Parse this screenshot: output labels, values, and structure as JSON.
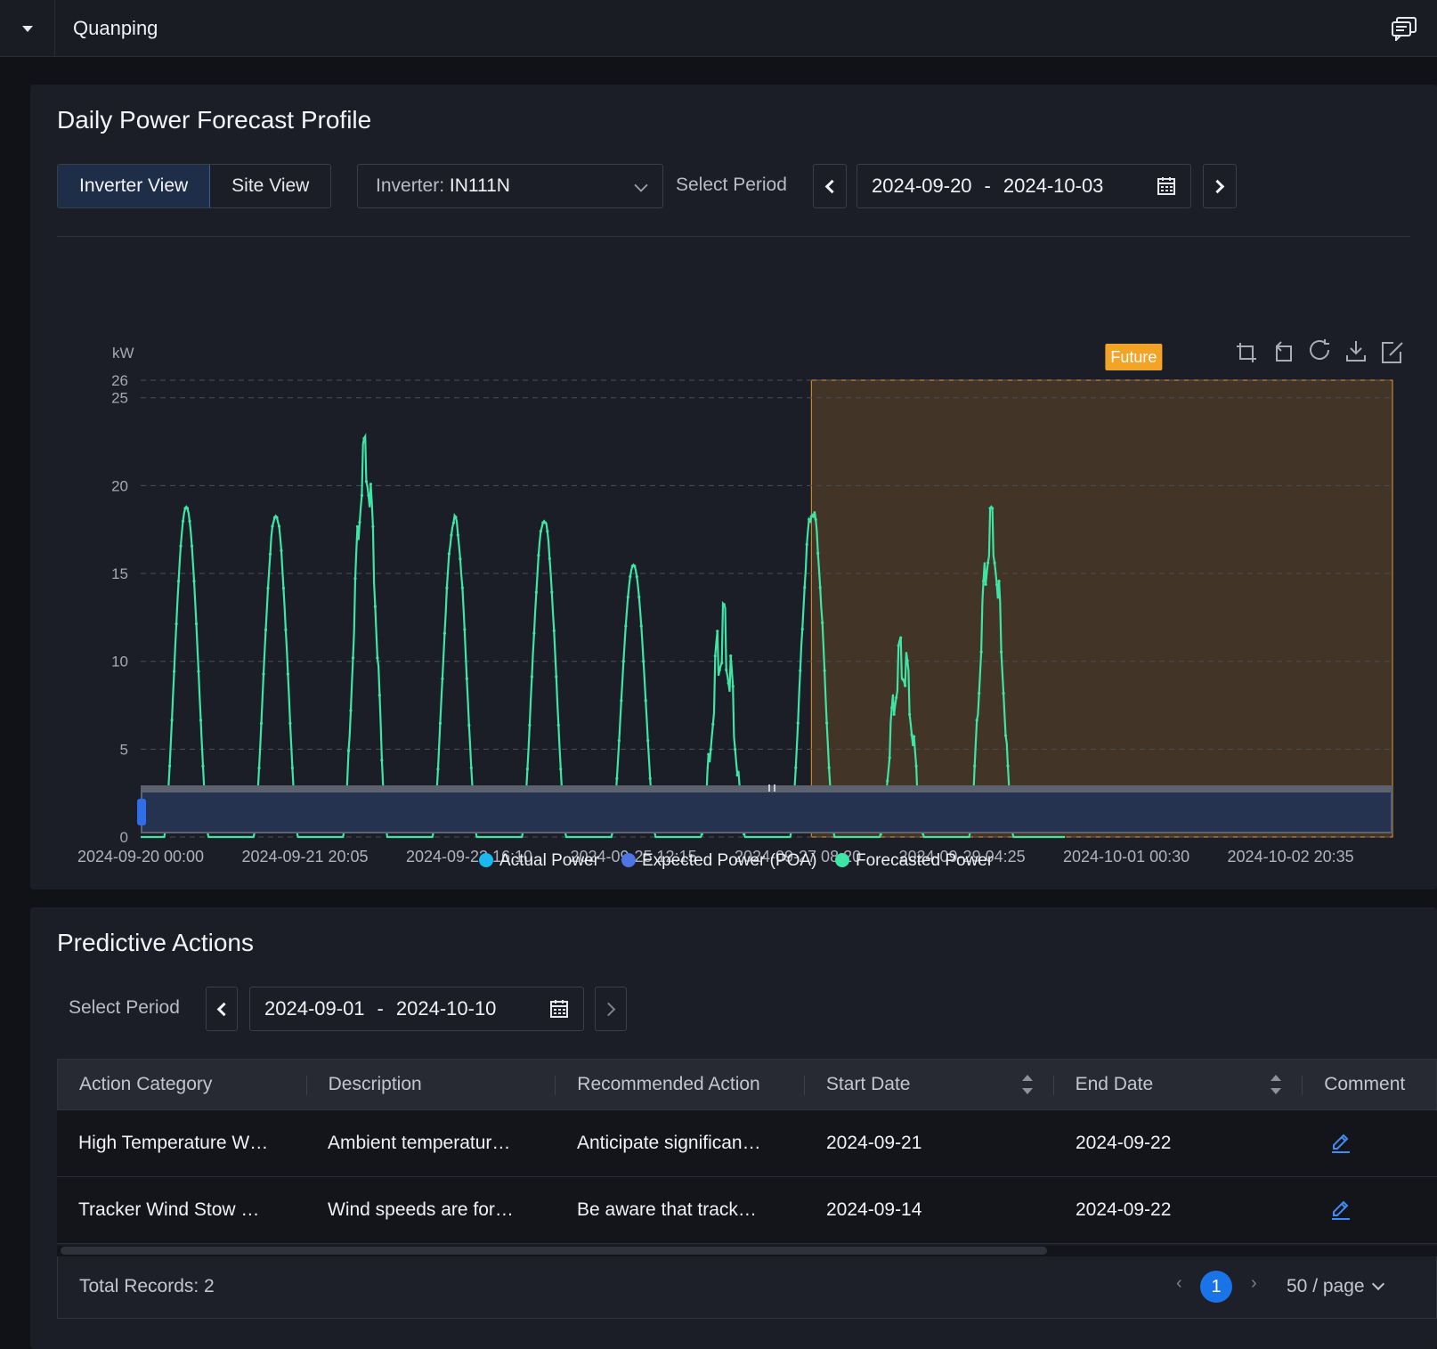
{
  "topbar": {
    "site_name": "Quanping"
  },
  "forecast": {
    "title": "Daily Power Forecast Profile",
    "views": [
      {
        "label": "Inverter View",
        "active": true
      },
      {
        "label": "Site View",
        "active": false
      }
    ],
    "inverter_label": "Inverter:",
    "inverter_value": "IN111N",
    "period_label": "Select Period",
    "period_start": "2024-09-20",
    "period_sep": "-",
    "period_end": "2024-10-03"
  },
  "chart_data": {
    "type": "line",
    "ylabel": "kW",
    "ylim": [
      0,
      26
    ],
    "yticks": [
      0,
      5,
      10,
      15,
      20,
      25,
      26
    ],
    "grid": true,
    "x_tick_labels": [
      "2024-09-20 00:00",
      "2024-09-21 20:05",
      "2024-09-23 16:10",
      "2024-09-25 12:15",
      "2024-09-27 08:20",
      "2024-09-29 04:25",
      "2024-10-01 00:30",
      "2024-10-02 20:35"
    ],
    "xlim": [
      "2024-09-20 00:00",
      "2024-10-03 23:55"
    ],
    "future_marker": {
      "label": "Future",
      "from": "2024-09-27 12:00"
    },
    "legend": [
      "Actual Power",
      "Expected Power (POA)",
      "Forecasted Power"
    ],
    "legend_position": "bottom",
    "series": [
      {
        "name": "Actual Power",
        "color": "#1bb8f0",
        "points": []
      },
      {
        "name": "Expected Power (POA)",
        "color": "#4e74e6",
        "points": []
      },
      {
        "name": "Forecasted Power",
        "color": "#3ee5a4",
        "daily_peaks": [
          {
            "day": "2024-09-20",
            "peak": 18.8
          },
          {
            "day": "2024-09-21",
            "peak": 18.5
          },
          {
            "day": "2024-09-22",
            "peak": 22.8
          },
          {
            "day": "2024-09-23",
            "peak": 18.3
          },
          {
            "day": "2024-09-24",
            "peak": 18.2
          },
          {
            "day": "2024-09-25",
            "peak": 15.5
          },
          {
            "day": "2024-09-26",
            "peak": 13.3
          },
          {
            "day": "2024-09-27",
            "peak": 18.9
          },
          {
            "day": "2024-09-28",
            "peak": 11.4
          },
          {
            "day": "2024-09-29",
            "peak": 18.8
          },
          {
            "day": "2024-09-30",
            "peak": 0
          },
          {
            "day": "2024-10-01",
            "peak": 0
          },
          {
            "day": "2024-10-02",
            "peak": 0
          },
          {
            "day": "2024-10-03",
            "peak": 0
          }
        ]
      }
    ],
    "zoom_slider_range": [
      0,
      1
    ]
  },
  "actions": {
    "title": "Predictive Actions",
    "period_label": "Select Period",
    "period_start": "2024-09-01",
    "period_sep": "-",
    "period_end": "2024-10-10",
    "columns": [
      "Action Category",
      "Description",
      "Recommended Action",
      "Start Date",
      "End Date",
      "Comment"
    ],
    "rows": [
      {
        "category": "High Temperature W…",
        "description": "Ambient temperatur…",
        "recommended": "Anticipate significan…",
        "start": "2024-09-21",
        "end": "2024-09-22"
      },
      {
        "category": "Tracker Wind Stow …",
        "description": "Wind speeds are for…",
        "recommended": "Be aware that track…",
        "start": "2024-09-14",
        "end": "2024-09-22"
      }
    ],
    "total_records": "Total Records: 2",
    "current_page": "1",
    "page_size": "50 / page"
  }
}
